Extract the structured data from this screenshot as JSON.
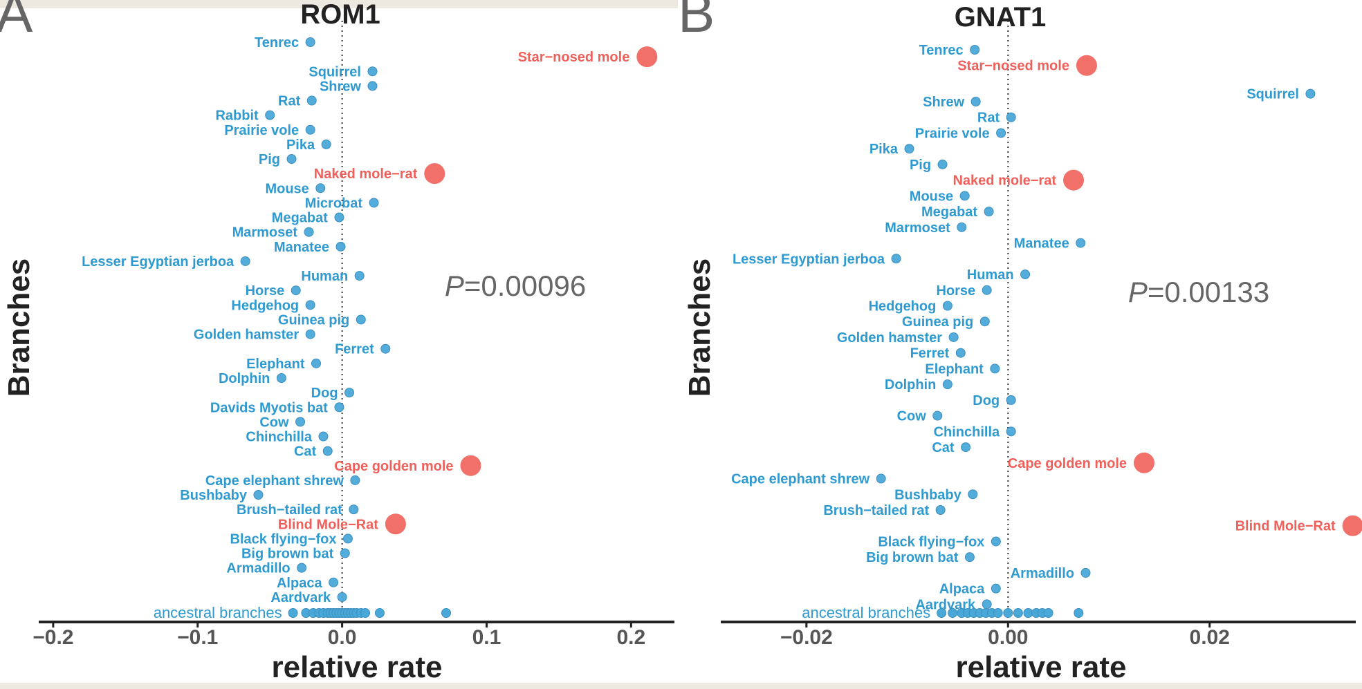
{
  "chart_data": [
    {
      "panel": "A",
      "type": "scatter",
      "title": "ROM1",
      "xlabel": "relative rate",
      "ylabel": "Branches",
      "pvalue": "P=0.00096",
      "xlim": [
        -0.21,
        0.23
      ],
      "xticks": [
        -0.2,
        -0.1,
        0.0,
        0.1,
        0.2
      ],
      "xtick_labels": [
        "−0.2",
        "−0.1",
        "0.0",
        "0.1",
        "0.2"
      ],
      "colors": {
        "highlight": "#f0605a",
        "normal": "#4aa8d8",
        "label_normal": "#2e9ad0"
      },
      "points": [
        {
          "label": "Tenrec",
          "x": -0.022,
          "highlight": false
        },
        {
          "label": "Star−nosed mole",
          "x": 0.211,
          "highlight": true
        },
        {
          "label": "Squirrel",
          "x": 0.021,
          "highlight": false
        },
        {
          "label": "Shrew",
          "x": 0.021,
          "highlight": false
        },
        {
          "label": "Rat",
          "x": -0.021,
          "highlight": false
        },
        {
          "label": "Rabbit",
          "x": -0.05,
          "highlight": false
        },
        {
          "label": "Prairie vole",
          "x": -0.022,
          "highlight": false
        },
        {
          "label": "Pika",
          "x": -0.011,
          "highlight": false
        },
        {
          "label": "Pig",
          "x": -0.035,
          "highlight": false
        },
        {
          "label": "Naked mole−rat",
          "x": 0.064,
          "highlight": true
        },
        {
          "label": "Mouse",
          "x": -0.015,
          "highlight": false
        },
        {
          "label": "Microbat",
          "x": 0.022,
          "highlight": false
        },
        {
          "label": "Megabat",
          "x": -0.002,
          "highlight": false
        },
        {
          "label": "Marmoset",
          "x": -0.023,
          "highlight": false
        },
        {
          "label": "Manatee",
          "x": -0.001,
          "highlight": false
        },
        {
          "label": "Lesser Egyptian jerboa",
          "x": -0.067,
          "highlight": false
        },
        {
          "label": "Human",
          "x": 0.012,
          "highlight": false
        },
        {
          "label": "Horse",
          "x": -0.032,
          "highlight": false
        },
        {
          "label": "Hedgehog",
          "x": -0.022,
          "highlight": false
        },
        {
          "label": "Guinea pig",
          "x": 0.013,
          "highlight": false
        },
        {
          "label": "Golden hamster",
          "x": -0.022,
          "highlight": false
        },
        {
          "label": "Ferret",
          "x": 0.03,
          "highlight": false
        },
        {
          "label": "Elephant",
          "x": -0.018,
          "highlight": false
        },
        {
          "label": "Dolphin",
          "x": -0.042,
          "highlight": false
        },
        {
          "label": "Dog",
          "x": 0.005,
          "highlight": false
        },
        {
          "label": "Davids Myotis bat",
          "x": -0.002,
          "highlight": false
        },
        {
          "label": "Cow",
          "x": -0.029,
          "highlight": false
        },
        {
          "label": "Chinchilla",
          "x": -0.013,
          "highlight": false
        },
        {
          "label": "Cat",
          "x": -0.01,
          "highlight": false
        },
        {
          "label": "Cape golden mole",
          "x": 0.089,
          "highlight": true
        },
        {
          "label": "Cape elephant shrew",
          "x": 0.009,
          "highlight": false
        },
        {
          "label": "Bushbaby",
          "x": -0.058,
          "highlight": false
        },
        {
          "label": "Brush−tailed rat",
          "x": 0.008,
          "highlight": false
        },
        {
          "label": "Blind Mole−Rat",
          "x": 0.037,
          "highlight": true
        },
        {
          "label": "Black flying−fox",
          "x": 0.004,
          "highlight": false
        },
        {
          "label": "Big brown bat",
          "x": 0.002,
          "highlight": false
        },
        {
          "label": "Armadillo",
          "x": -0.028,
          "highlight": false
        },
        {
          "label": "Alpaca",
          "x": -0.006,
          "highlight": false
        },
        {
          "label": "Aardvark",
          "x": 0.0,
          "highlight": false
        }
      ],
      "ancestral": {
        "label": "ancestral branches",
        "values": [
          -0.034,
          -0.025,
          -0.02,
          -0.016,
          -0.013,
          -0.01,
          -0.008,
          -0.006,
          -0.004,
          -0.002,
          0.0,
          0.002,
          0.004,
          0.006,
          0.008,
          0.01,
          0.013,
          0.016,
          0.026,
          0.072
        ]
      }
    },
    {
      "panel": "B",
      "type": "scatter",
      "title": "GNAT1",
      "xlabel": "relative rate",
      "ylabel": "Branches",
      "pvalue": "P=0.00133",
      "xlim": [
        -0.0285,
        0.0345
      ],
      "xticks": [
        -0.02,
        0.0,
        0.02
      ],
      "xtick_labels": [
        "−0.02",
        "0.00",
        "0.02"
      ],
      "colors": {
        "highlight": "#f0605a",
        "normal": "#4aa8d8",
        "label_normal": "#2e9ad0"
      },
      "points": [
        {
          "label": "Tenrec",
          "x": -0.0033,
          "highlight": false
        },
        {
          "label": "Star−nosed mole",
          "x": 0.0078,
          "highlight": true
        },
        {
          "label": "Squirrel",
          "x": 0.03,
          "highlight": false
        },
        {
          "label": "Shrew",
          "x": -0.0032,
          "highlight": false
        },
        {
          "label": "Rat",
          "x": 0.0003,
          "highlight": false
        },
        {
          "label": "Prairie vole",
          "x": -0.0007,
          "highlight": false
        },
        {
          "label": "Pika",
          "x": -0.0098,
          "highlight": false
        },
        {
          "label": "Pig",
          "x": -0.0065,
          "highlight": false
        },
        {
          "label": "Naked mole−rat",
          "x": 0.0065,
          "highlight": true
        },
        {
          "label": "Mouse",
          "x": -0.0043,
          "highlight": false
        },
        {
          "label": "Megabat",
          "x": -0.0019,
          "highlight": false
        },
        {
          "label": "Marmoset",
          "x": -0.0046,
          "highlight": false
        },
        {
          "label": "Manatee",
          "x": 0.0072,
          "highlight": false
        },
        {
          "label": "Lesser Egyptian jerboa",
          "x": -0.0111,
          "highlight": false
        },
        {
          "label": "Human",
          "x": 0.0017,
          "highlight": false
        },
        {
          "label": "Horse",
          "x": -0.0021,
          "highlight": false
        },
        {
          "label": "Hedgehog",
          "x": -0.006,
          "highlight": false
        },
        {
          "label": "Guinea pig",
          "x": -0.0023,
          "highlight": false
        },
        {
          "label": "Golden hamster",
          "x": -0.0054,
          "highlight": false
        },
        {
          "label": "Ferret",
          "x": -0.0047,
          "highlight": false
        },
        {
          "label": "Elephant",
          "x": -0.0013,
          "highlight": false
        },
        {
          "label": "Dolphin",
          "x": -0.006,
          "highlight": false
        },
        {
          "label": "Dog",
          "x": 0.0003,
          "highlight": false
        },
        {
          "label": "Cow",
          "x": -0.007,
          "highlight": false
        },
        {
          "label": "Chinchilla",
          "x": 0.0003,
          "highlight": false
        },
        {
          "label": "Cat",
          "x": -0.0042,
          "highlight": false
        },
        {
          "label": "Cape golden mole",
          "x": 0.0135,
          "highlight": true
        },
        {
          "label": "Cape elephant shrew",
          "x": -0.0126,
          "highlight": false
        },
        {
          "label": "Bushbaby",
          "x": -0.0035,
          "highlight": false
        },
        {
          "label": "Brush−tailed rat",
          "x": -0.0067,
          "highlight": false
        },
        {
          "label": "Blind Mole−Rat",
          "x": 0.0342,
          "highlight": true
        },
        {
          "label": "Black flying−fox",
          "x": -0.0012,
          "highlight": false
        },
        {
          "label": "Big brown bat",
          "x": -0.0038,
          "highlight": false
        },
        {
          "label": "Armadillo",
          "x": 0.0077,
          "highlight": false
        },
        {
          "label": "Alpaca",
          "x": -0.0012,
          "highlight": false
        },
        {
          "label": "Aardvark",
          "x": -0.0021,
          "highlight": false
        }
      ],
      "ancestral": {
        "label": "ancestral branches",
        "values": [
          -0.0066,
          -0.0055,
          -0.0046,
          -0.004,
          -0.0034,
          -0.0028,
          -0.0022,
          -0.0016,
          -0.001,
          0.0,
          0.001,
          0.002,
          0.0028,
          0.0034,
          0.004,
          0.007
        ]
      }
    }
  ]
}
